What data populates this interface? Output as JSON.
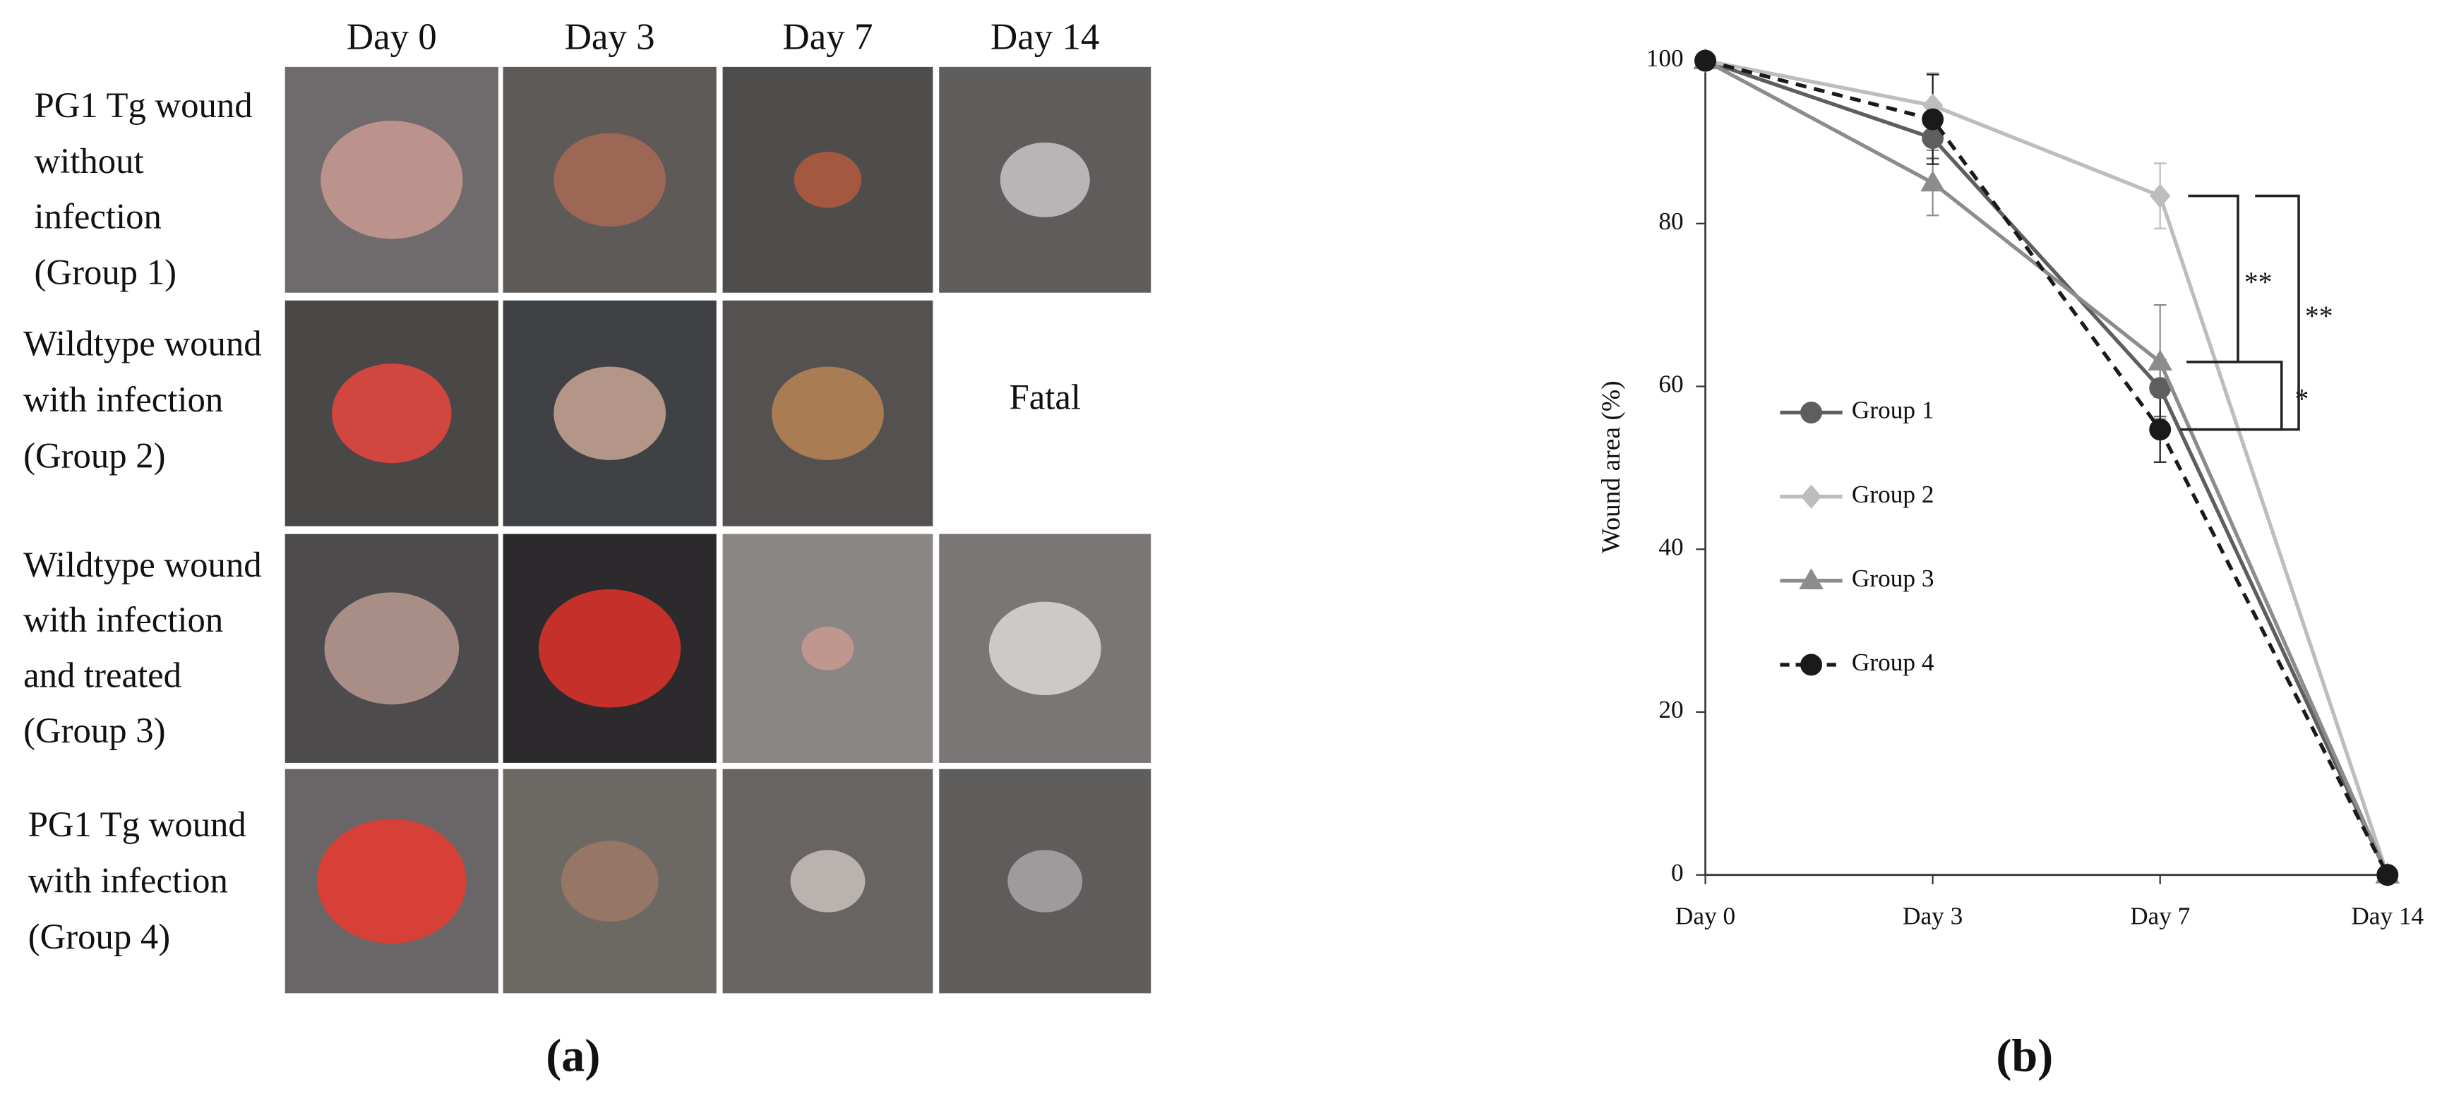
{
  "panel_a": {
    "columns": [
      "Day 0",
      "Day 3",
      "Day 7",
      "Day 14"
    ],
    "rows": [
      {
        "label": [
          "PG1 Tg wound",
          "without",
          "infection",
          "(Group 1)"
        ]
      },
      {
        "label": [
          "Wildtype wound",
          "with infection",
          "(Group 2)"
        ],
        "note": "Fatal"
      },
      {
        "label": [
          "Wildtype wound",
          "with infection",
          "and treated",
          "(Group 3)"
        ]
      },
      {
        "label": [
          "PG1 Tg wound",
          "with infection",
          "(Group 4)"
        ]
      }
    ],
    "caption": "(a)"
  },
  "panel_b_caption": "(b)",
  "chart_data": {
    "type": "line",
    "y_label": "Wound area (%)",
    "categories": [
      "Day 0",
      "Day 3",
      "Day 7",
      "Day 14"
    ],
    "series": [
      {
        "name": "Group 1",
        "color": "#5e5e5e",
        "marker": "circle",
        "line_style": "solid",
        "values": [
          100,
          90.5,
          59.8,
          0
        ],
        "errors": [
          null,
          2.5,
          3.5,
          null
        ]
      },
      {
        "name": "Group 2",
        "color": "#bdbdbd",
        "marker": "diamond",
        "line_style": "solid",
        "values": [
          100,
          94.5,
          83.4,
          0
        ],
        "errors": [
          null,
          4,
          4,
          null
        ]
      },
      {
        "name": "Group 3",
        "color": "#8c8c8c",
        "marker": "triangle",
        "line_style": "solid",
        "values": [
          100,
          85,
          63,
          0
        ],
        "errors": [
          null,
          4,
          7,
          null
        ]
      },
      {
        "name": "Group 4",
        "color": "#1a1a1a",
        "marker": "circle",
        "line_style": "dashed",
        "values": [
          100,
          92.8,
          54.7,
          0
        ],
        "errors": [
          null,
          5.5,
          4,
          null
        ]
      }
    ],
    "ylim": [
      0,
      100
    ],
    "yticks": [
      0,
      20,
      40,
      60,
      80,
      100
    ],
    "grid": false,
    "legend": "left",
    "annotations": [
      {
        "text": "**",
        "groups": [
          "Group 2",
          "Group 3"
        ]
      },
      {
        "text": "*",
        "groups": [
          "Group 3",
          "Group 4"
        ]
      },
      {
        "text": "**",
        "groups": [
          "Group 2",
          "Group 4"
        ]
      }
    ]
  }
}
